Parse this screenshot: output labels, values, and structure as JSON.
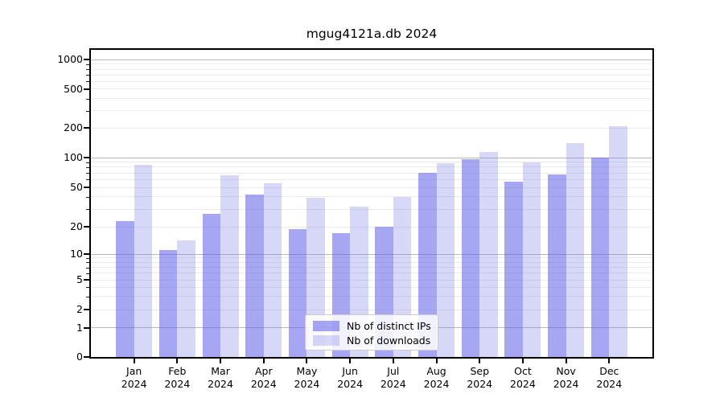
{
  "title": "mgug4121a.db 2024",
  "chart_data": {
    "type": "bar",
    "title": "mgug4121a.db 2024",
    "categories": [
      "Jan",
      "Feb",
      "Mar",
      "Apr",
      "May",
      "Jun",
      "Jul",
      "Aug",
      "Sep",
      "Oct",
      "Nov",
      "Dec"
    ],
    "x_sub_label": "2024",
    "series": [
      {
        "name": "Nb of distinct IPs",
        "key": "ips",
        "values": [
          23,
          11,
          27,
          42,
          19,
          17,
          20,
          70,
          97,
          57,
          68,
          100
        ]
      },
      {
        "name": "Nb of downloads",
        "key": "downloads",
        "values": [
          85,
          14,
          66,
          55,
          39,
          32,
          40,
          88,
          115,
          90,
          140,
          210
        ]
      }
    ],
    "yscale": "symlog",
    "y_ticks": [
      0,
      1,
      2,
      5,
      10,
      20,
      50,
      100,
      200,
      500,
      1000
    ],
    "ylim": [
      0,
      1000
    ],
    "grid": true,
    "legend_position": "lower-center"
  },
  "colors": {
    "bar_ips": "rgba(92,92,233,0.55)",
    "bar_downloads": "rgba(122,122,232,0.30)",
    "grid_major": "#b9b9b9",
    "grid_minor": "#ebebeb",
    "axis": "#000000",
    "legend_border": "#cccccc"
  }
}
